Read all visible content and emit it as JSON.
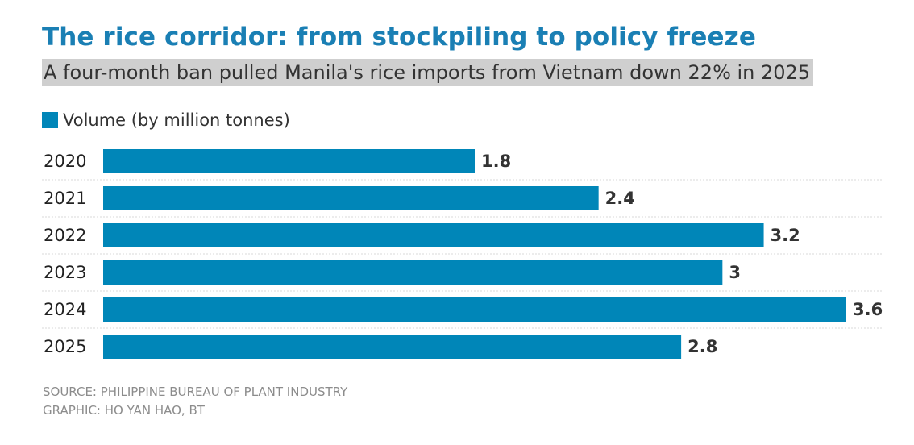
{
  "header": {
    "title": "The rice corridor: from stockpiling to policy freeze",
    "subtitle": "A four-month ban pulled Manila's rice imports from Vietnam down 22% in 2025"
  },
  "chart_data": {
    "type": "bar",
    "orientation": "horizontal",
    "categories": [
      "2020",
      "2021",
      "2022",
      "2023",
      "2024",
      "2025"
    ],
    "series": [
      {
        "name": "Volume (by million tonnes)",
        "values": [
          1.8,
          2.4,
          3.2,
          3,
          3.6,
          2.8
        ],
        "color": "#0086b8"
      }
    ],
    "data_labels": [
      "1.8",
      "2.4",
      "3.2",
      "3",
      "3.6",
      "2.8"
    ],
    "xlim": [
      0,
      3.6
    ],
    "grid": false,
    "legend_position": "top-left"
  },
  "footer": {
    "source": "SOURCE: PHILIPPINE BUREAU OF PLANT INDUSTRY",
    "credit": "GRAPHIC: HO YAN HAO, BT"
  }
}
